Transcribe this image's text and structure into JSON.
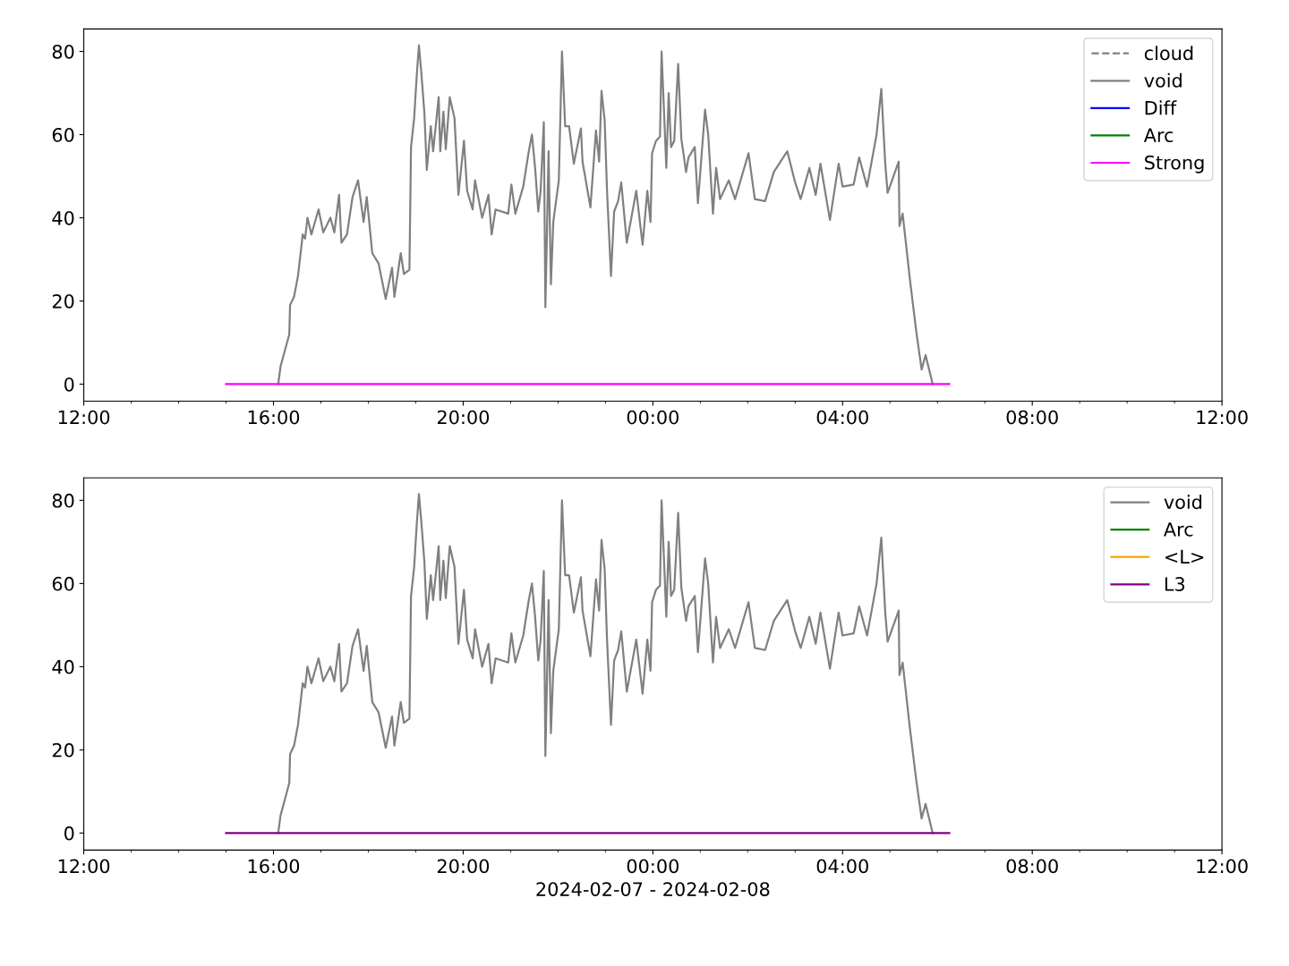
{
  "chart_data": [
    {
      "type": "line",
      "legend": "upper right",
      "xlim": [
        "2024-02-07T12:00",
        "2024-02-08T12:00"
      ],
      "ylim": [
        -4.1,
        85.4
      ],
      "yticks": [
        0,
        20,
        40,
        60,
        80
      ],
      "xticks": [
        {
          "value": "2024-02-07T12:00",
          "label": "12:00"
        },
        {
          "value": "2024-02-07T13:00",
          "label": null
        },
        {
          "value": "2024-02-07T14:00",
          "label": null
        },
        {
          "value": "2024-02-07T15:00",
          "label": null
        },
        {
          "value": "2024-02-07T16:00",
          "label": "16:00"
        },
        {
          "value": "2024-02-07T17:00",
          "label": null
        },
        {
          "value": "2024-02-07T18:00",
          "label": null
        },
        {
          "value": "2024-02-07T19:00",
          "label": null
        },
        {
          "value": "2024-02-07T20:00",
          "label": "20:00"
        },
        {
          "value": "2024-02-07T21:00",
          "label": null
        },
        {
          "value": "2024-02-07T22:00",
          "label": null
        },
        {
          "value": "2024-02-07T23:00",
          "label": null
        },
        {
          "value": "2024-02-08T00:00",
          "label": "00:00"
        },
        {
          "value": "2024-02-08T01:00",
          "label": null
        },
        {
          "value": "2024-02-08T02:00",
          "label": null
        },
        {
          "value": "2024-02-08T03:00",
          "label": null
        },
        {
          "value": "2024-02-08T04:00",
          "label": "04:00"
        },
        {
          "value": "2024-02-08T05:00",
          "label": null
        },
        {
          "value": "2024-02-08T06:00",
          "label": null
        },
        {
          "value": "2024-02-08T07:00",
          "label": null
        },
        {
          "value": "2024-02-08T08:00",
          "label": "08:00"
        },
        {
          "value": "2024-02-08T09:00",
          "label": null
        },
        {
          "value": "2024-02-08T10:00",
          "label": null
        },
        {
          "value": "2024-02-08T11:00",
          "label": null
        },
        {
          "value": "2024-02-08T12:00",
          "label": "12:00"
        }
      ],
      "series": [
        {
          "name": "cloud",
          "color": "#808080",
          "line_style": "dashed"
        },
        {
          "name": "void",
          "color": "#808080",
          "x": [
            "2024-02-07T16:06",
            "2024-02-07T16:09",
            "2024-02-07T16:20",
            "2024-02-07T16:21",
            "2024-02-07T16:26",
            "2024-02-07T16:31",
            "2024-02-07T16:37",
            "2024-02-07T16:40",
            "2024-02-07T16:43",
            "2024-02-07T16:48",
            "2024-02-07T16:57",
            "2024-02-07T17:03",
            "2024-02-07T17:12",
            "2024-02-07T17:17",
            "2024-02-07T17:23",
            "2024-02-07T17:26",
            "2024-02-07T17:33",
            "2024-02-07T17:40",
            "2024-02-07T17:47",
            "2024-02-07T17:54",
            "2024-02-07T17:58",
            "2024-02-07T18:05",
            "2024-02-07T18:13",
            "2024-02-07T18:22",
            "2024-02-07T18:30",
            "2024-02-07T18:33",
            "2024-02-07T18:41",
            "2024-02-07T18:45",
            "2024-02-07T18:52",
            "2024-02-07T18:54",
            "2024-02-07T18:58",
            "2024-02-07T19:01",
            "2024-02-07T19:04",
            "2024-02-07T19:07",
            "2024-02-07T19:11",
            "2024-02-07T19:14",
            "2024-02-07T19:19",
            "2024-02-07T19:22",
            "2024-02-07T19:29",
            "2024-02-07T19:31",
            "2024-02-07T19:35",
            "2024-02-07T19:38",
            "2024-02-07T19:43",
            "2024-02-07T19:49",
            "2024-02-07T19:54",
            "2024-02-07T20:01",
            "2024-02-07T20:05",
            "2024-02-07T20:12",
            "2024-02-07T20:15",
            "2024-02-07T20:24",
            "2024-02-07T20:32",
            "2024-02-07T20:36",
            "2024-02-07T20:41",
            "2024-02-07T20:57",
            "2024-02-07T21:01",
            "2024-02-07T21:06",
            "2024-02-07T21:16",
            "2024-02-07T21:23",
            "2024-02-07T21:27",
            "2024-02-07T21:31",
            "2024-02-07T21:35",
            "2024-02-07T21:38",
            "2024-02-07T21:42",
            "2024-02-07T21:44",
            "2024-02-07T21:46",
            "2024-02-07T21:48",
            "2024-02-07T21:51",
            "2024-02-07T21:54",
            "2024-02-07T22:01",
            "2024-02-07T22:05",
            "2024-02-07T22:09",
            "2024-02-07T22:14",
            "2024-02-07T22:20",
            "2024-02-07T22:29",
            "2024-02-07T22:31",
            "2024-02-07T22:41",
            "2024-02-07T22:48",
            "2024-02-07T22:52",
            "2024-02-07T22:55",
            "2024-02-07T22:59",
            "2024-02-07T23:02",
            "2024-02-07T23:07",
            "2024-02-07T23:11",
            "2024-02-07T23:16",
            "2024-02-07T23:20",
            "2024-02-07T23:27",
            "2024-02-07T23:39",
            "2024-02-07T23:47",
            "2024-02-07T23:53",
            "2024-02-07T23:57",
            "2024-02-07T23:59",
            "2024-02-08T00:04",
            "2024-02-08T00:09",
            "2024-02-08T00:11",
            "2024-02-08T00:17",
            "2024-02-08T00:20",
            "2024-02-08T00:23",
            "2024-02-08T00:27",
            "2024-02-08T00:32",
            "2024-02-08T00:36",
            "2024-02-08T00:42",
            "2024-02-08T00:45",
            "2024-02-08T00:53",
            "2024-02-08T00:57",
            "2024-02-08T01:06",
            "2024-02-08T01:10",
            "2024-02-08T01:16",
            "2024-02-08T01:20",
            "2024-02-08T01:25",
            "2024-02-08T01:36",
            "2024-02-08T01:44",
            "2024-02-08T02:01",
            "2024-02-08T02:09",
            "2024-02-08T02:22",
            "2024-02-08T02:33",
            "2024-02-08T02:50",
            "2024-02-08T03:00",
            "2024-02-08T03:07",
            "2024-02-08T03:18",
            "2024-02-08T03:26",
            "2024-02-08T03:32",
            "2024-02-08T03:44",
            "2024-02-08T03:55",
            "2024-02-08T04:00",
            "2024-02-08T04:14",
            "2024-02-08T04:21",
            "2024-02-08T04:31",
            "2024-02-08T04:43",
            "2024-02-08T04:49",
            "2024-02-08T04:54",
            "2024-02-08T04:57",
            "2024-02-08T05:11",
            "2024-02-08T05:12",
            "2024-02-08T05:16",
            "2024-02-08T05:25",
            "2024-02-08T05:33",
            "2024-02-08T05:40",
            "2024-02-08T05:45",
            "2024-02-08T05:54"
          ],
          "values": [
            0,
            4.3,
            12,
            19,
            21,
            26,
            36,
            35,
            40,
            36,
            42,
            36.5,
            40,
            36.5,
            45.5,
            34,
            36,
            45,
            49,
            39,
            45,
            31.5,
            29,
            20.5,
            28,
            21,
            31.5,
            26.5,
            27.5,
            57,
            64,
            73.5,
            81.5,
            75,
            65,
            51.5,
            62,
            56,
            69,
            56,
            65.5,
            56.5,
            69,
            64,
            45.5,
            58.5,
            46.5,
            42,
            49,
            40,
            45.5,
            36,
            42,
            41,
            48,
            41,
            47.5,
            56,
            60,
            52,
            41.5,
            46.5,
            63,
            18.5,
            36.5,
            56,
            24,
            39,
            49,
            80,
            62,
            62,
            53,
            61.5,
            53.5,
            42.5,
            61,
            53.5,
            70.5,
            63.5,
            46.5,
            26,
            41.5,
            44,
            48.5,
            34,
            46.5,
            33.5,
            46.5,
            39,
            55.5,
            58.5,
            59.5,
            80,
            52,
            70,
            57,
            58.5,
            77,
            59,
            51,
            54.5,
            57,
            43.5,
            66,
            60,
            41,
            52,
            44.5,
            49,
            44.5,
            55.5,
            44.5,
            44,
            51,
            56,
            48.5,
            44.5,
            52,
            45.5,
            53,
            39.5,
            53,
            47.5,
            48,
            54.5,
            47.5,
            60,
            71,
            53,
            46,
            53.5,
            38,
            41,
            25.5,
            13,
            3.5,
            7,
            0
          ]
        },
        {
          "name": "Diff",
          "color": "#0000ff"
        },
        {
          "name": "Arc",
          "color": "#008000"
        },
        {
          "name": "Strong",
          "color": "#ff00ff",
          "x": [
            "2024-02-07T15:00",
            "2024-02-08T06:15"
          ],
          "values": [
            0,
            0
          ]
        }
      ]
    },
    {
      "type": "line",
      "legend": "upper right",
      "xlabel": "2024-02-07 - 2024-02-08",
      "xlim": [
        "2024-02-07T12:00",
        "2024-02-08T12:00"
      ],
      "ylim": [
        -4.1,
        85.4
      ],
      "yticks": [
        0,
        20,
        40,
        60,
        80
      ],
      "xticks": [
        {
          "value": "2024-02-07T12:00",
          "label": "12:00"
        },
        {
          "value": "2024-02-07T13:00",
          "label": null
        },
        {
          "value": "2024-02-07T14:00",
          "label": null
        },
        {
          "value": "2024-02-07T15:00",
          "label": null
        },
        {
          "value": "2024-02-07T16:00",
          "label": "16:00"
        },
        {
          "value": "2024-02-07T17:00",
          "label": null
        },
        {
          "value": "2024-02-07T18:00",
          "label": null
        },
        {
          "value": "2024-02-07T19:00",
          "label": null
        },
        {
          "value": "2024-02-07T20:00",
          "label": "20:00"
        },
        {
          "value": "2024-02-07T21:00",
          "label": null
        },
        {
          "value": "2024-02-07T22:00",
          "label": null
        },
        {
          "value": "2024-02-07T23:00",
          "label": null
        },
        {
          "value": "2024-02-08T00:00",
          "label": "00:00"
        },
        {
          "value": "2024-02-08T01:00",
          "label": null
        },
        {
          "value": "2024-02-08T02:00",
          "label": null
        },
        {
          "value": "2024-02-08T03:00",
          "label": null
        },
        {
          "value": "2024-02-08T04:00",
          "label": "04:00"
        },
        {
          "value": "2024-02-08T05:00",
          "label": null
        },
        {
          "value": "2024-02-08T06:00",
          "label": null
        },
        {
          "value": "2024-02-08T07:00",
          "label": null
        },
        {
          "value": "2024-02-08T08:00",
          "label": "08:00"
        },
        {
          "value": "2024-02-08T09:00",
          "label": null
        },
        {
          "value": "2024-02-08T10:00",
          "label": null
        },
        {
          "value": "2024-02-08T11:00",
          "label": null
        },
        {
          "value": "2024-02-08T12:00",
          "label": "12:00"
        }
      ],
      "series": [
        {
          "name": "void",
          "color": "#808080",
          "x": [
            "2024-02-07T16:06",
            "2024-02-07T16:09",
            "2024-02-07T16:20",
            "2024-02-07T16:21",
            "2024-02-07T16:26",
            "2024-02-07T16:31",
            "2024-02-07T16:37",
            "2024-02-07T16:40",
            "2024-02-07T16:43",
            "2024-02-07T16:48",
            "2024-02-07T16:57",
            "2024-02-07T17:03",
            "2024-02-07T17:12",
            "2024-02-07T17:17",
            "2024-02-07T17:23",
            "2024-02-07T17:26",
            "2024-02-07T17:33",
            "2024-02-07T17:40",
            "2024-02-07T17:47",
            "2024-02-07T17:54",
            "2024-02-07T17:58",
            "2024-02-07T18:05",
            "2024-02-07T18:13",
            "2024-02-07T18:22",
            "2024-02-07T18:30",
            "2024-02-07T18:33",
            "2024-02-07T18:41",
            "2024-02-07T18:45",
            "2024-02-07T18:52",
            "2024-02-07T18:54",
            "2024-02-07T18:58",
            "2024-02-07T19:01",
            "2024-02-07T19:04",
            "2024-02-07T19:07",
            "2024-02-07T19:11",
            "2024-02-07T19:14",
            "2024-02-07T19:19",
            "2024-02-07T19:22",
            "2024-02-07T19:29",
            "2024-02-07T19:31",
            "2024-02-07T19:35",
            "2024-02-07T19:38",
            "2024-02-07T19:43",
            "2024-02-07T19:49",
            "2024-02-07T19:54",
            "2024-02-07T20:01",
            "2024-02-07T20:05",
            "2024-02-07T20:12",
            "2024-02-07T20:15",
            "2024-02-07T20:24",
            "2024-02-07T20:32",
            "2024-02-07T20:36",
            "2024-02-07T20:41",
            "2024-02-07T20:57",
            "2024-02-07T21:01",
            "2024-02-07T21:06",
            "2024-02-07T21:16",
            "2024-02-07T21:23",
            "2024-02-07T21:27",
            "2024-02-07T21:31",
            "2024-02-07T21:35",
            "2024-02-07T21:38",
            "2024-02-07T21:42",
            "2024-02-07T21:44",
            "2024-02-07T21:46",
            "2024-02-07T21:48",
            "2024-02-07T21:51",
            "2024-02-07T21:54",
            "2024-02-07T22:01",
            "2024-02-07T22:05",
            "2024-02-07T22:09",
            "2024-02-07T22:14",
            "2024-02-07T22:20",
            "2024-02-07T22:29",
            "2024-02-07T22:31",
            "2024-02-07T22:41",
            "2024-02-07T22:48",
            "2024-02-07T22:52",
            "2024-02-07T22:55",
            "2024-02-07T22:59",
            "2024-02-07T23:02",
            "2024-02-07T23:07",
            "2024-02-07T23:11",
            "2024-02-07T23:16",
            "2024-02-07T23:20",
            "2024-02-07T23:27",
            "2024-02-07T23:39",
            "2024-02-07T23:47",
            "2024-02-07T23:53",
            "2024-02-07T23:57",
            "2024-02-07T23:59",
            "2024-02-08T00:04",
            "2024-02-08T00:09",
            "2024-02-08T00:11",
            "2024-02-08T00:17",
            "2024-02-08T00:20",
            "2024-02-08T00:23",
            "2024-02-08T00:27",
            "2024-02-08T00:32",
            "2024-02-08T00:36",
            "2024-02-08T00:42",
            "2024-02-08T00:45",
            "2024-02-08T00:53",
            "2024-02-08T00:57",
            "2024-02-08T01:06",
            "2024-02-08T01:10",
            "2024-02-08T01:16",
            "2024-02-08T01:20",
            "2024-02-08T01:25",
            "2024-02-08T01:36",
            "2024-02-08T01:44",
            "2024-02-08T02:01",
            "2024-02-08T02:09",
            "2024-02-08T02:22",
            "2024-02-08T02:33",
            "2024-02-08T02:50",
            "2024-02-08T03:00",
            "2024-02-08T03:07",
            "2024-02-08T03:18",
            "2024-02-08T03:26",
            "2024-02-08T03:32",
            "2024-02-08T03:44",
            "2024-02-08T03:55",
            "2024-02-08T04:00",
            "2024-02-08T04:14",
            "2024-02-08T04:21",
            "2024-02-08T04:31",
            "2024-02-08T04:43",
            "2024-02-08T04:49",
            "2024-02-08T04:54",
            "2024-02-08T04:57",
            "2024-02-08T05:11",
            "2024-02-08T05:12",
            "2024-02-08T05:16",
            "2024-02-08T05:25",
            "2024-02-08T05:33",
            "2024-02-08T05:40",
            "2024-02-08T05:45",
            "2024-02-08T05:54"
          ],
          "values": [
            0,
            4.3,
            12,
            19,
            21,
            26,
            36,
            35,
            40,
            36,
            42,
            36.5,
            40,
            36.5,
            45.5,
            34,
            36,
            45,
            49,
            39,
            45,
            31.5,
            29,
            20.5,
            28,
            21,
            31.5,
            26.5,
            27.5,
            57,
            64,
            73.5,
            81.5,
            75,
            65,
            51.5,
            62,
            56,
            69,
            56,
            65.5,
            56.5,
            69,
            64,
            45.5,
            58.5,
            46.5,
            42,
            49,
            40,
            45.5,
            36,
            42,
            41,
            48,
            41,
            47.5,
            56,
            60,
            52,
            41.5,
            46.5,
            63,
            18.5,
            36.5,
            56,
            24,
            39,
            49,
            80,
            62,
            62,
            53,
            61.5,
            53.5,
            42.5,
            61,
            53.5,
            70.5,
            63.5,
            46.5,
            26,
            41.5,
            44,
            48.5,
            34,
            46.5,
            33.5,
            46.5,
            39,
            55.5,
            58.5,
            59.5,
            80,
            52,
            70,
            57,
            58.5,
            77,
            59,
            51,
            54.5,
            57,
            43.5,
            66,
            60,
            41,
            52,
            44.5,
            49,
            44.5,
            55.5,
            44.5,
            44,
            51,
            56,
            48.5,
            44.5,
            52,
            45.5,
            53,
            39.5,
            53,
            47.5,
            48,
            54.5,
            47.5,
            60,
            71,
            53,
            46,
            53.5,
            38,
            41,
            25.5,
            13,
            3.5,
            7,
            0
          ]
        },
        {
          "name": "Arc",
          "color": "#008000"
        },
        {
          "name": "<L>",
          "color": "#ffa500"
        },
        {
          "name": "L3",
          "color": "#800080",
          "x": [
            "2024-02-07T15:00",
            "2024-02-08T06:15"
          ],
          "values": [
            0,
            0
          ]
        }
      ]
    }
  ]
}
